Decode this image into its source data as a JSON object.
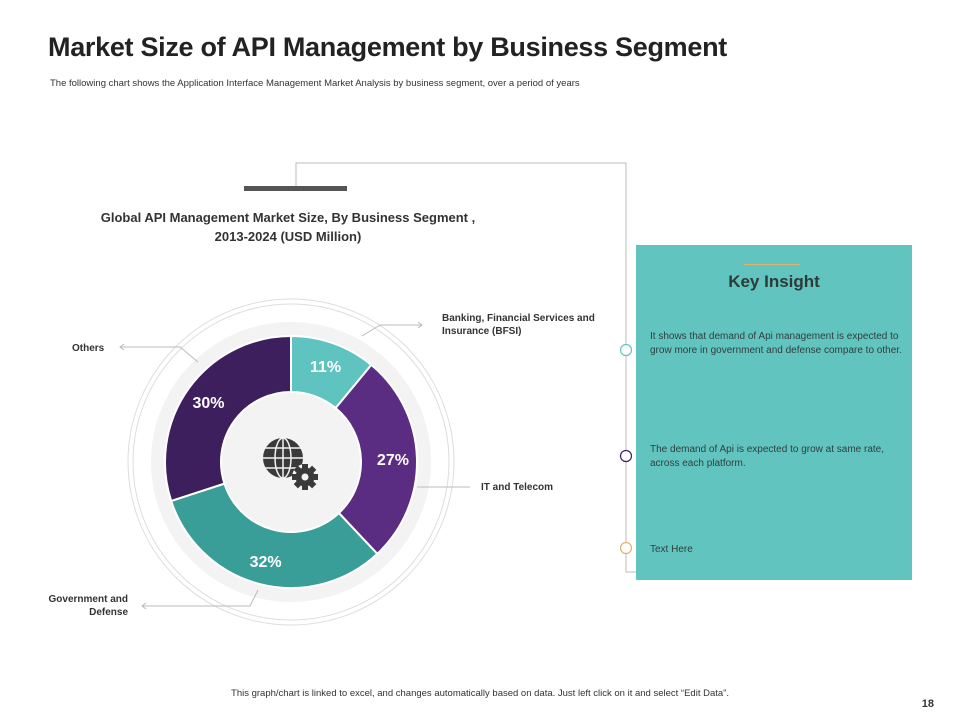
{
  "header": {
    "title": "Market Size of API Management by Business Segment",
    "subtitle": "The following chart shows the Application Interface Management Market Analysis by business segment, over a period of years"
  },
  "chart_data": {
    "type": "pie",
    "variant": "donut",
    "title_line1": "Global API Management Market Size, By Business Segment ,",
    "title_line2": "2013-2024 (USD Million)",
    "categories": [
      "Banking, Financial Services and Insurance (BFSI)",
      "IT and Telecom",
      "Government and Defense",
      "Others"
    ],
    "values": [
      11,
      27,
      32,
      30
    ],
    "data_labels": [
      "11%",
      "27%",
      "32%",
      "30%"
    ],
    "colors": [
      "#5fc4bf",
      "#5b2d82",
      "#3a9e98",
      "#3e1f5e"
    ],
    "center_icon": "globe-gear-icon"
  },
  "labels": {
    "bfsi_line1": "Banking, Financial Services and",
    "bfsi_line2": "Insurance (BFSI)",
    "it": "IT and Telecom",
    "gov_line1": "Government and",
    "gov_line2": "Defense",
    "others": "Others"
  },
  "insight": {
    "heading": "Key Insight",
    "items": [
      "It shows that demand of Api management is expected to grow more in government and defense compare to other.",
      "The demand of Api is expected to grow at same rate, across  each platform.",
      "Text Here"
    ],
    "marker_colors": [
      "#62c4be",
      "#3e1f5e",
      "#e0b070"
    ],
    "card_color": "#62c4be"
  },
  "footer": {
    "note": "This graph/chart is linked to excel, and changes automatically based on data. Just left click on it and select “Edit Data”.",
    "page_number": "18"
  }
}
